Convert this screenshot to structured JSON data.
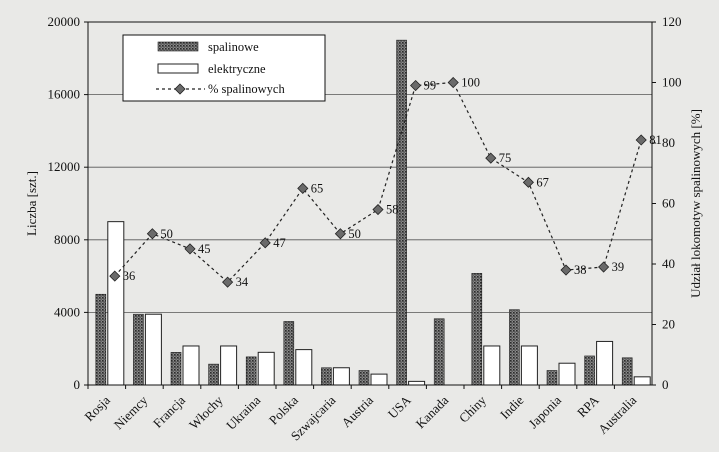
{
  "chart_data": {
    "type": "bar",
    "categories": [
      "Rosja",
      "Niemcy",
      "Francja",
      "Włochy",
      "Ukraina",
      "Polska",
      "Szwajcaria",
      "Austria",
      "USA",
      "Kanada",
      "Chiny",
      "Indie",
      "Japonia",
      "RPA",
      "Australia"
    ],
    "series": [
      {
        "name": "spalinowe",
        "axis": "left",
        "values": [
          5000,
          3900,
          1800,
          1150,
          1550,
          3500,
          950,
          800,
          19000,
          3650,
          6150,
          4150,
          800,
          1600,
          1500
        ]
      },
      {
        "name": "elektryczne",
        "axis": "left",
        "values": [
          9000,
          3900,
          2150,
          2150,
          1800,
          1950,
          950,
          600,
          200,
          0,
          2150,
          2150,
          1200,
          2400,
          450
        ]
      },
      {
        "name": "% spalinowych",
        "axis": "right",
        "type": "line",
        "values": [
          36,
          50,
          45,
          34,
          47,
          65,
          50,
          58,
          99,
          100,
          75,
          67,
          38,
          39,
          81
        ]
      }
    ],
    "ylabel": "Liczba [szt.]",
    "y2label": "Udział lokomotyw spalinowych [%]",
    "ylim": [
      0,
      20000
    ],
    "y2lim": [
      0,
      120
    ],
    "yticks": [
      "0",
      "4000",
      "8000",
      "12000",
      "16000",
      "20000"
    ],
    "y2ticks": [
      "0",
      "20",
      "40",
      "60",
      "80",
      "100",
      "120"
    ],
    "grid": true,
    "legend": "top-left"
  }
}
